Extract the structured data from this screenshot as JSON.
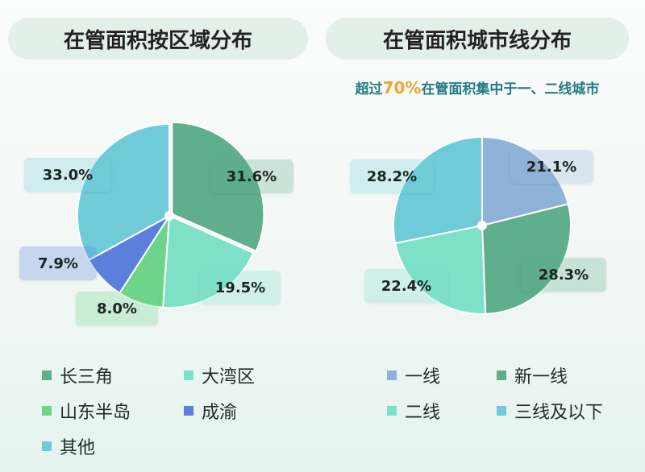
{
  "left_panel": {
    "title": "在管面积按区域分布"
  },
  "right_panel": {
    "title": "在管面积城市线分布",
    "subtitle_prefix": "超过",
    "subtitle_highlight": "70%",
    "subtitle_suffix": "在管面积集中于一、二线城市"
  },
  "chart_data": [
    {
      "type": "pie",
      "title": "在管面积按区域分布",
      "slices": [
        {
          "name": "长三角",
          "value": 31.6,
          "label": "31.6%",
          "color": "#5fae8c"
        },
        {
          "name": "大湾区",
          "value": 19.5,
          "label": "19.5%",
          "color": "#7fe0c8"
        },
        {
          "name": "山东半岛",
          "value": 8.0,
          "label": "8.0%",
          "color": "#6fd48a"
        },
        {
          "name": "成渝",
          "value": 7.9,
          "label": "7.9%",
          "color": "#5d7fdc"
        },
        {
          "name": "其他",
          "value": 33.0,
          "label": "33.0%",
          "color": "#6fcbd8"
        }
      ],
      "legend_position": "bottom"
    },
    {
      "type": "pie",
      "title": "在管面积城市线分布",
      "slices": [
        {
          "name": "一线",
          "value": 21.1,
          "label": "21.1%",
          "color": "#8fb2d8"
        },
        {
          "name": "新一线",
          "value": 28.3,
          "label": "28.3%",
          "color": "#5fae8c"
        },
        {
          "name": "二线",
          "value": 22.4,
          "label": "22.4%",
          "color": "#7fe0c8"
        },
        {
          "name": "三线及以下",
          "value": 28.2,
          "label": "28.2%",
          "color": "#6fcbd8"
        }
      ],
      "legend_position": "bottom"
    }
  ]
}
